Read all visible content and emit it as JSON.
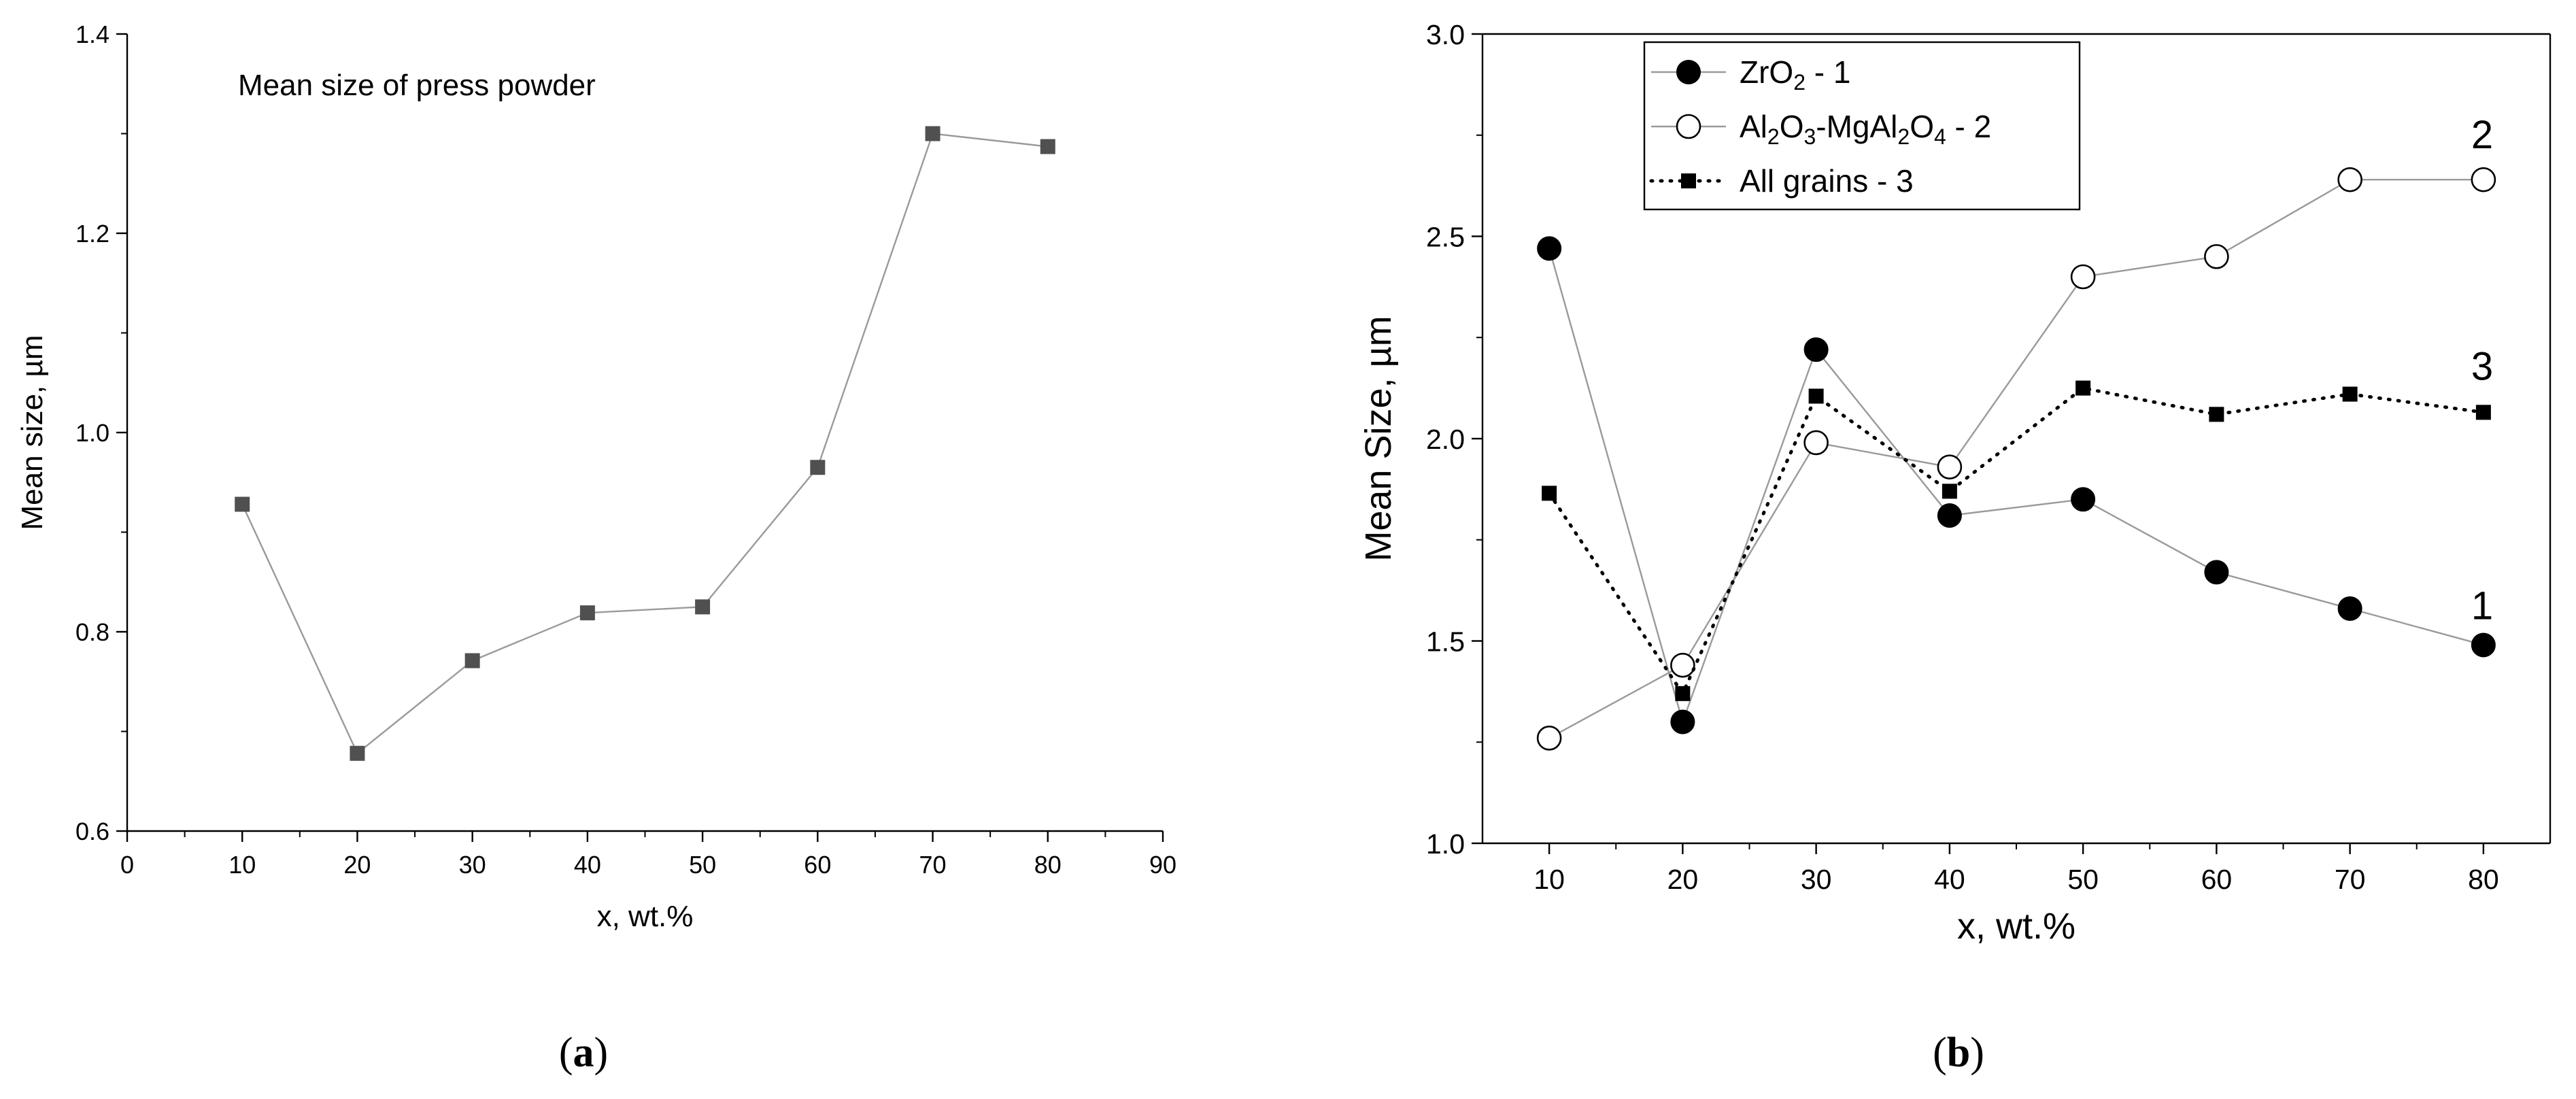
{
  "chart_data": [
    {
      "type": "line",
      "panel": "a",
      "panel_label": "(a)",
      "panel_label_letter": "a",
      "annotation": "Mean size of press powder",
      "xlabel": "x, wt.%",
      "ylabel": "Mean size, µm",
      "xlim": [
        0,
        90
      ],
      "ylim": [
        0.6,
        1.4
      ],
      "xticks": [
        0,
        10,
        20,
        30,
        40,
        50,
        60,
        70,
        80,
        90
      ],
      "xtick_labels": [
        "0",
        "10",
        "20",
        "30",
        "40",
        "50",
        "60",
        "70",
        "80",
        "90"
      ],
      "yticks": [
        0.6,
        0.8,
        1.0,
        1.2,
        1.4
      ],
      "ytick_labels": [
        "0.6",
        "0.8",
        "1.0",
        "1.2",
        "1.4"
      ],
      "grid": false,
      "series": [
        {
          "marker": "square",
          "color": "#505050",
          "line_color": "#9a9a9a",
          "x": [
            10,
            20,
            30,
            40,
            50,
            60,
            70,
            80
          ],
          "values": [
            0.928,
            0.678,
            0.771,
            0.819,
            0.825,
            0.965,
            1.3,
            1.287
          ]
        }
      ]
    },
    {
      "type": "line",
      "panel": "b",
      "panel_label": "(b)",
      "panel_label_letter": "b",
      "xlabel": "x, wt.%",
      "ylabel": "Mean Size, µm",
      "xlim": [
        5,
        85
      ],
      "ylim": [
        1.0,
        3.0
      ],
      "xticks": [
        10,
        20,
        30,
        40,
        50,
        60,
        70,
        80
      ],
      "xtick_labels": [
        "10",
        "20",
        "30",
        "40",
        "50",
        "60",
        "70",
        "80"
      ],
      "yticks": [
        1.0,
        1.5,
        2.0,
        2.5,
        3.0
      ],
      "ytick_labels": [
        "1.0",
        "1.5",
        "2.0",
        "2.5",
        "3.0"
      ],
      "grid": false,
      "legend_position": "top-left",
      "series": [
        {
          "name": "ZrO2 - 1",
          "end_label": "1",
          "marker": "filled-circle",
          "line": "solid",
          "color": "#000000",
          "line_color": "#9a9a9a",
          "x": [
            10,
            20,
            30,
            40,
            50,
            60,
            70,
            80
          ],
          "values": [
            2.47,
            1.3,
            2.22,
            1.81,
            1.85,
            1.67,
            1.58,
            1.49
          ]
        },
        {
          "name": "Al2O3-MgAl2O4 - 2",
          "end_label": "2",
          "marker": "open-circle",
          "line": "solid",
          "color": "#000000",
          "line_color": "#9a9a9a",
          "x": [
            10,
            20,
            30,
            40,
            50,
            60,
            70,
            80
          ],
          "values": [
            1.26,
            1.44,
            1.99,
            1.93,
            2.4,
            2.45,
            2.64,
            2.64
          ]
        },
        {
          "name": "All grains - 3",
          "end_label": "3",
          "marker": "square",
          "line": "dotted",
          "color": "#000000",
          "line_color": "#000000",
          "x": [
            10,
            20,
            30,
            40,
            50,
            60,
            70,
            80
          ],
          "values": [
            1.865,
            1.37,
            2.105,
            1.87,
            2.125,
            2.06,
            2.11,
            2.065
          ]
        }
      ],
      "legend_text": [
        {
          "parts": [
            [
              "ZrO",
              ""
            ],
            [
              "2",
              "sub"
            ],
            [
              " - 1",
              ""
            ]
          ]
        },
        {
          "parts": [
            [
              "Al",
              ""
            ],
            [
              "2",
              "sub"
            ],
            [
              "O",
              ""
            ],
            [
              "3",
              "sub"
            ],
            [
              "-MgAl",
              ""
            ],
            [
              "2",
              "sub"
            ],
            [
              "O",
              ""
            ],
            [
              "4",
              "sub"
            ],
            [
              " - 2",
              ""
            ]
          ]
        },
        {
          "parts": [
            [
              "All grains - 3",
              ""
            ]
          ]
        }
      ]
    }
  ]
}
